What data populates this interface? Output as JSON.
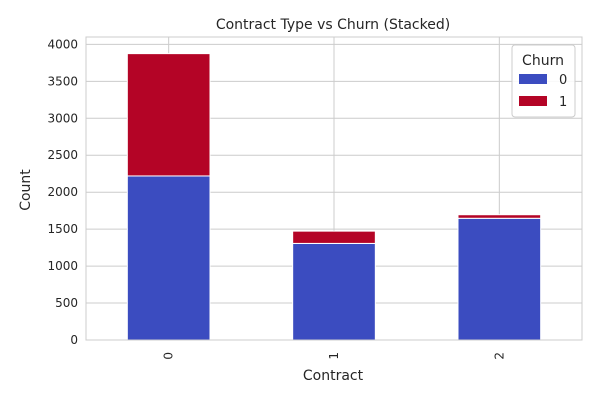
{
  "chart_data": {
    "type": "bar",
    "stacked": true,
    "title": "Contract Type vs Churn (Stacked)",
    "xlabel": "Contract",
    "ylabel": "Count",
    "categories": [
      "0",
      "1",
      "2"
    ],
    "series": [
      {
        "name": "0",
        "color": "#3b4cc0",
        "values": [
          2220,
          1307,
          1647
        ]
      },
      {
        "name": "1",
        "color": "#b40426",
        "values": [
          1655,
          166,
          48
        ]
      }
    ],
    "ylim": [
      0,
      4100
    ],
    "yticks": [
      0,
      500,
      1000,
      1500,
      2000,
      2500,
      3000,
      3500,
      4000
    ],
    "grid": true,
    "legend": {
      "title": "Churn",
      "placement": "top-right"
    }
  }
}
